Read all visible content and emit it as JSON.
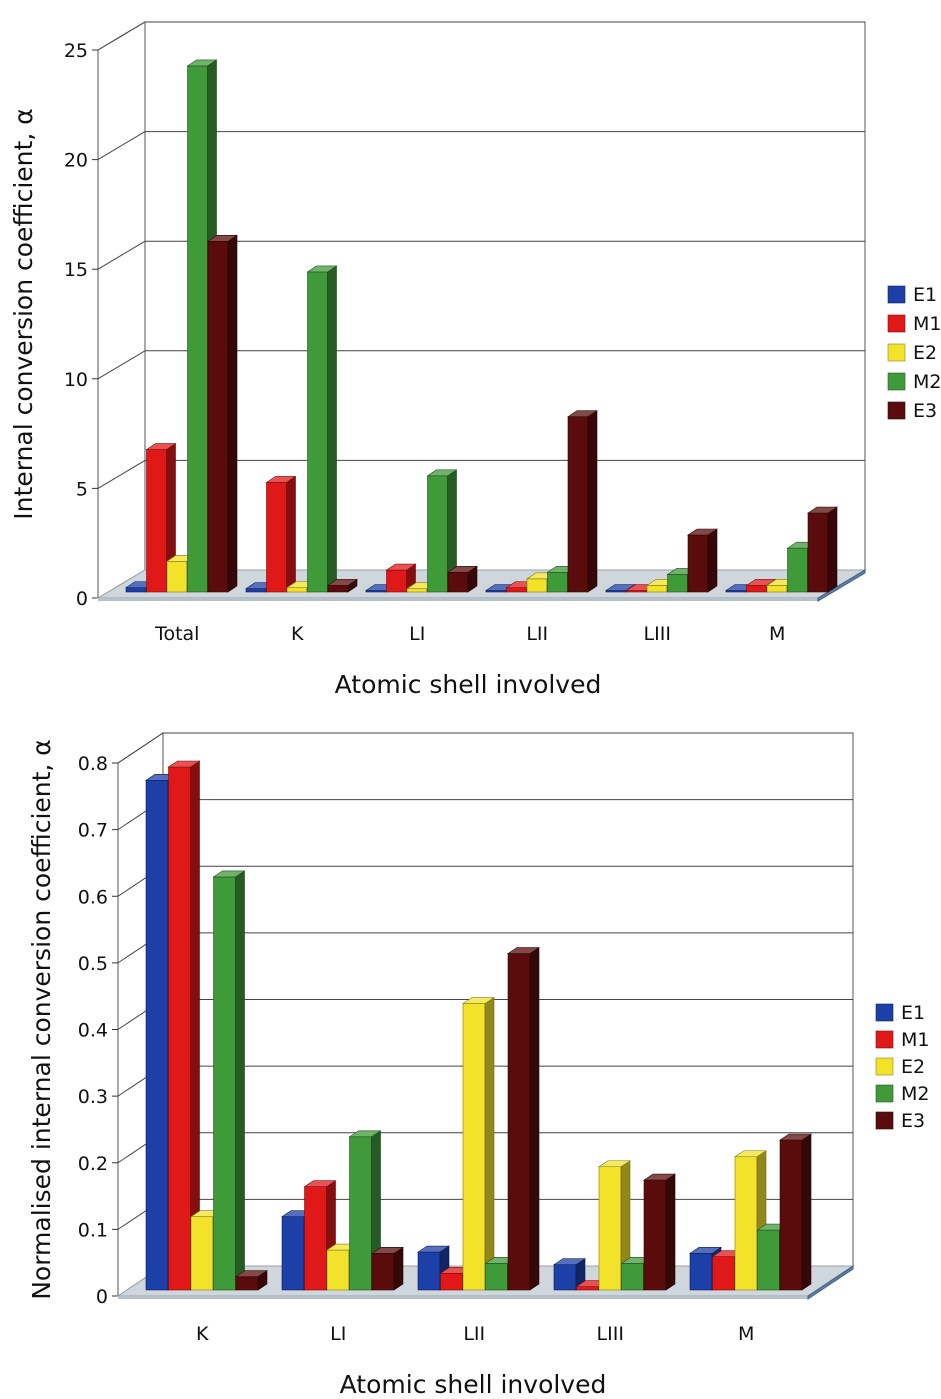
{
  "chart_data": [
    {
      "type": "bar",
      "categories": [
        "Total",
        "K",
        "LI",
        "LII",
        "LIII",
        "M"
      ],
      "series": [
        {
          "name": "E1",
          "values": [
            0.2,
            0.15,
            0.05,
            0.05,
            0.02,
            0.05
          ]
        },
        {
          "name": "M1",
          "values": [
            6.5,
            5.0,
            1.0,
            0.2,
            0.05,
            0.3
          ]
        },
        {
          "name": "E2",
          "values": [
            1.4,
            0.2,
            0.15,
            0.6,
            0.3,
            0.3
          ]
        },
        {
          "name": "M2",
          "values": [
            24.0,
            14.6,
            5.3,
            0.9,
            0.8,
            2.0
          ]
        },
        {
          "name": "E3",
          "values": [
            16.0,
            0.3,
            0.9,
            8.0,
            2.6,
            3.6
          ]
        }
      ],
      "colors": [
        "#1c3fa8",
        "#e01818",
        "#f2e22a",
        "#3f9a3a",
        "#5a0b0b"
      ],
      "ylabel": "Internal conversion coefficient, α",
      "xlabel": "Atomic shell involved",
      "ylim": [
        0,
        25
      ],
      "yticks": [
        "0",
        "5",
        "10",
        "15",
        "20",
        "25"
      ],
      "grid": true,
      "legend": "right"
    },
    {
      "type": "bar",
      "categories": [
        "K",
        "LI",
        "LII",
        "LIII",
        "M"
      ],
      "series": [
        {
          "name": "E1",
          "values": [
            0.765,
            0.11,
            0.057,
            0.038,
            0.055
          ]
        },
        {
          "name": "M1",
          "values": [
            0.785,
            0.155,
            0.025,
            0.005,
            0.05
          ]
        },
        {
          "name": "E2",
          "values": [
            0.11,
            0.06,
            0.43,
            0.185,
            0.2
          ]
        },
        {
          "name": "M2",
          "values": [
            0.62,
            0.23,
            0.04,
            0.04,
            0.09
          ]
        },
        {
          "name": "E3",
          "values": [
            0.02,
            0.055,
            0.505,
            0.165,
            0.225
          ]
        }
      ],
      "colors": [
        "#1c3fa8",
        "#e01818",
        "#f2e22a",
        "#3f9a3a",
        "#5a0b0b"
      ],
      "ylabel": "Normalised internal conversion coefficient, α",
      "xlabel": "Atomic shell involved",
      "ylim": [
        0,
        0.8
      ],
      "yticks": [
        "0",
        "0.1",
        "0.2",
        "0.3",
        "0.4",
        "0.5",
        "0.6",
        "0.7",
        "0.8"
      ],
      "grid": true,
      "legend": "right"
    }
  ]
}
